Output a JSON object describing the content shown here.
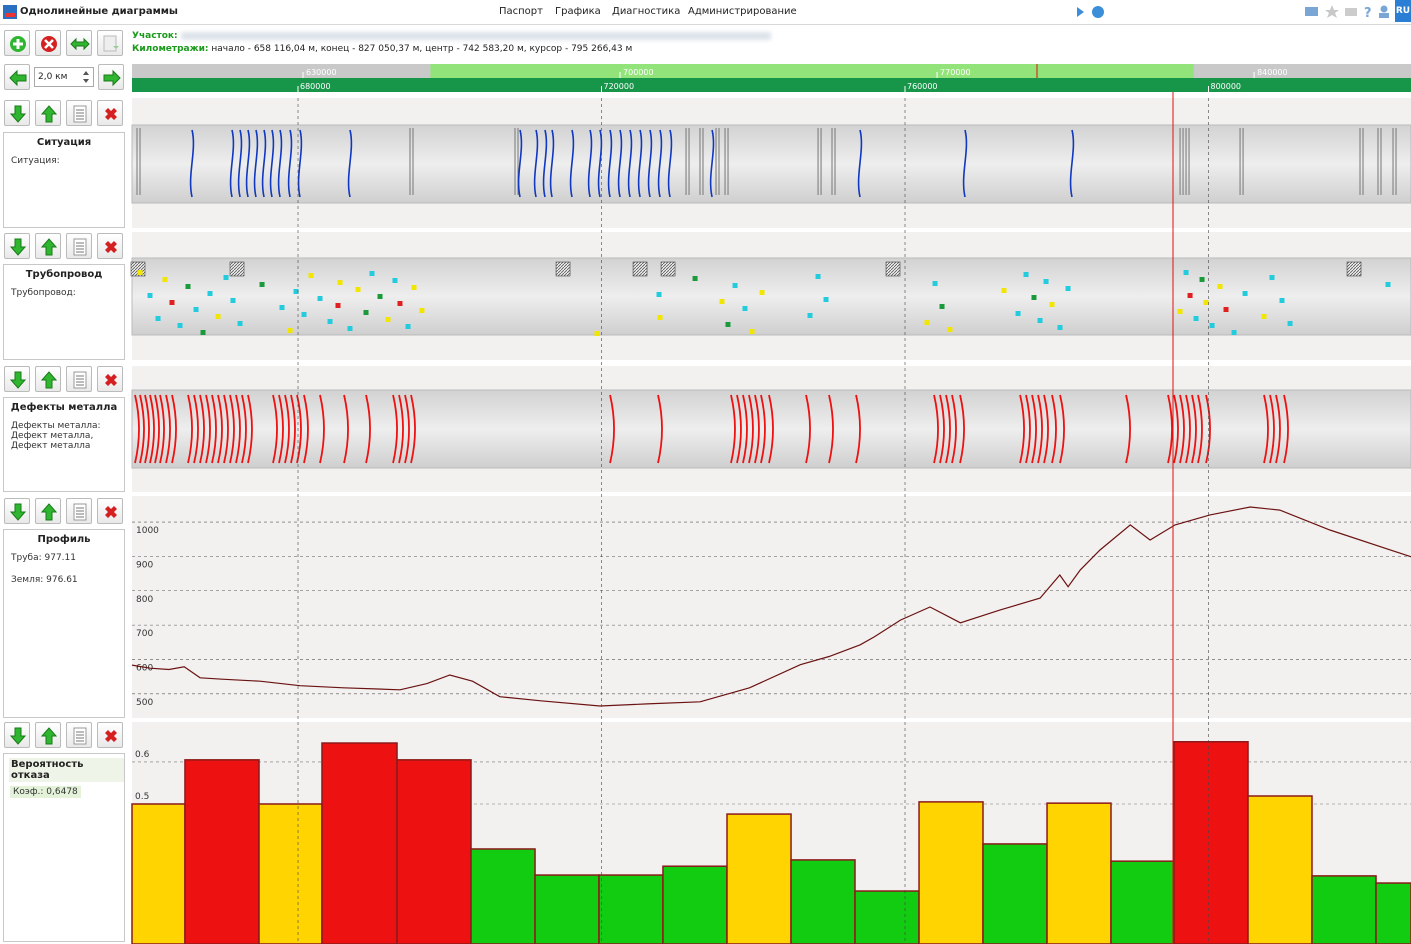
{
  "header": {
    "title": "Однолинейные диаграммы",
    "menu": [
      "Паспорт",
      "Графика",
      "Диагностика",
      "Администрирование"
    ],
    "language": "RU"
  },
  "info": {
    "section_label": "Участок:",
    "km_label": "Километражи:",
    "km_text": "начало - 658 116,04 м, конец - 827 050,37 м, центр - 742 583,20 м, курсор - 795 266,43 м"
  },
  "zoom": "2,0 км",
  "ruler": {
    "top": {
      "xlim": [
        592240,
        874650
      ],
      "xticks": [
        630000,
        700000,
        770000,
        840000
      ]
    },
    "bottom": {
      "xlim": [
        658120,
        826690
      ],
      "xticks": [
        680000,
        720000,
        760000,
        800000
      ]
    }
  },
  "panels": [
    {
      "title": "Ситуация",
      "lines": [
        "Ситуация:"
      ],
      "crossings": [
        666030,
        671300,
        672360,
        673410,
        674460,
        675520,
        676570,
        677630,
        678950,
        680260,
        686850,
        709260,
        711370,
        712550,
        713480,
        716110,
        718490,
        719800,
        721120,
        722440,
        723760,
        725080,
        726390,
        727710,
        729030,
        734570,
        754070,
        767910,
        782010
      ],
      "structures": [
        658780,
        694760,
        708600,
        731140,
        732980,
        735090,
        736280,
        748540,
        750380,
        796250,
        797040,
        804160,
        819970,
        822340,
        824320
      ]
    },
    {
      "title": "Трубопровод",
      "lines": [
        "Трубопровод:"
      ],
      "fittings": [
        658910,
        671960,
        714930,
        725080,
        728770,
        758420,
        819180
      ],
      "points": [
        {
          "x": 659180,
          "color": "#f2e600"
        },
        {
          "x": 660490,
          "color": "#22ccdd"
        },
        {
          "x": 661550,
          "color": "#22ccdd"
        },
        {
          "x": 662470,
          "color": "#f2e600"
        },
        {
          "x": 663390,
          "color": "#e02020"
        },
        {
          "x": 664450,
          "color": "#22ccdd"
        },
        {
          "x": 665500,
          "color": "#1a9a3a"
        },
        {
          "x": 666560,
          "color": "#22ccdd"
        },
        {
          "x": 667480,
          "color": "#1a9a3a"
        },
        {
          "x": 668400,
          "color": "#22ccdd"
        },
        {
          "x": 669460,
          "color": "#f2e600"
        },
        {
          "x": 670510,
          "color": "#22ccdd"
        },
        {
          "x": 671430,
          "color": "#22ccdd"
        },
        {
          "x": 672360,
          "color": "#22ccdd"
        },
        {
          "x": 675260,
          "color": "#1a9a3a"
        },
        {
          "x": 677890,
          "color": "#22ccdd"
        },
        {
          "x": 678950,
          "color": "#f2e600"
        },
        {
          "x": 679740,
          "color": "#22ccdd"
        },
        {
          "x": 680790,
          "color": "#22ccdd"
        },
        {
          "x": 681710,
          "color": "#f2e600"
        },
        {
          "x": 682900,
          "color": "#22ccdd"
        },
        {
          "x": 684220,
          "color": "#22ccdd"
        },
        {
          "x": 685540,
          "color": "#f2e600"
        },
        {
          "x": 685270,
          "color": "#e02020"
        },
        {
          "x": 686850,
          "color": "#22ccdd"
        },
        {
          "x": 687910,
          "color": "#f2e600"
        },
        {
          "x": 688960,
          "color": "#1a9a3a"
        },
        {
          "x": 689750,
          "color": "#22ccdd"
        },
        {
          "x": 690810,
          "color": "#1a9a3a"
        },
        {
          "x": 691860,
          "color": "#f2e600"
        },
        {
          "x": 692780,
          "color": "#22ccdd"
        },
        {
          "x": 693440,
          "color": "#e02020"
        },
        {
          "x": 694500,
          "color": "#22ccdd"
        },
        {
          "x": 695290,
          "color": "#f2e600"
        },
        {
          "x": 696340,
          "color": "#f2e600"
        },
        {
          "x": 719410,
          "color": "#f2e600"
        },
        {
          "x": 727580,
          "color": "#22ccdd"
        },
        {
          "x": 727710,
          "color": "#f2e600"
        },
        {
          "x": 732330,
          "color": "#1a9a3a"
        },
        {
          "x": 735880,
          "color": "#f2e600"
        },
        {
          "x": 736670,
          "color": "#1a9a3a"
        },
        {
          "x": 737600,
          "color": "#22ccdd"
        },
        {
          "x": 738910,
          "color": "#22ccdd"
        },
        {
          "x": 739840,
          "color": "#f2e600"
        },
        {
          "x": 741160,
          "color": "#f2e600"
        },
        {
          "x": 747480,
          "color": "#22ccdd"
        },
        {
          "x": 748540,
          "color": "#22ccdd"
        },
        {
          "x": 749590,
          "color": "#22ccdd"
        },
        {
          "x": 762900,
          "color": "#f2e600"
        },
        {
          "x": 763960,
          "color": "#22ccdd"
        },
        {
          "x": 764880,
          "color": "#1a9a3a"
        },
        {
          "x": 765930,
          "color": "#f2e600"
        },
        {
          "x": 773050,
          "color": "#f2e600"
        },
        {
          "x": 774900,
          "color": "#22ccdd"
        },
        {
          "x": 775950,
          "color": "#22ccdd"
        },
        {
          "x": 777000,
          "color": "#1a9a3a"
        },
        {
          "x": 777800,
          "color": "#22ccdd"
        },
        {
          "x": 778590,
          "color": "#22ccdd"
        },
        {
          "x": 779380,
          "color": "#f2e600"
        },
        {
          "x": 780430,
          "color": "#22ccdd"
        },
        {
          "x": 781490,
          "color": "#22ccdd"
        },
        {
          "x": 796250,
          "color": "#f2e600"
        },
        {
          "x": 797040,
          "color": "#22ccdd"
        },
        {
          "x": 797570,
          "color": "#e02020"
        },
        {
          "x": 798360,
          "color": "#22ccdd"
        },
        {
          "x": 799150,
          "color": "#1a9a3a"
        },
        {
          "x": 799670,
          "color": "#f2e600"
        },
        {
          "x": 800470,
          "color": "#22ccdd"
        },
        {
          "x": 801520,
          "color": "#f2e600"
        },
        {
          "x": 802310,
          "color": "#e02020"
        },
        {
          "x": 803370,
          "color": "#22ccdd"
        },
        {
          "x": 804820,
          "color": "#22ccdd"
        },
        {
          "x": 807320,
          "color": "#f2e600"
        },
        {
          "x": 808370,
          "color": "#22ccdd"
        },
        {
          "x": 809690,
          "color": "#22ccdd"
        },
        {
          "x": 810750,
          "color": "#22ccdd"
        },
        {
          "x": 823660,
          "color": "#22ccdd"
        }
      ]
    },
    {
      "title": "Дефекты металла",
      "lines": [
        "Дефекты металла:",
        "Дефект металла,",
        "Дефект металла"
      ],
      "defects": [
        658780,
        659440,
        660100,
        660760,
        661420,
        662080,
        662870,
        663660,
        665770,
        666560,
        667350,
        668140,
        668930,
        669720,
        670510,
        671300,
        672090,
        672880,
        673670,
        676970,
        677760,
        678550,
        679340,
        680130,
        681050,
        683160,
        686330,
        689230,
        692790,
        693580,
        694370,
        695160,
        721390,
        727710,
        737330,
        738120,
        738910,
        739700,
        740490,
        741280,
        742340,
        747220,
        750250,
        753810,
        764090,
        764880,
        765670,
        766460,
        767520,
        775430,
        776210,
        777010,
        777800,
        778590,
        779640,
        780700,
        789400,
        794930,
        795720,
        796510,
        797300,
        798090,
        798880,
        799940,
        807580,
        808370,
        809160,
        810220
      ]
    },
    {
      "title": "Профиль",
      "lines": [
        "Труба: 977.11",
        "Земля: 976.61"
      ]
    },
    {
      "title": "Вероятность отказа",
      "lines": [
        "Коэф.: 0,6478"
      ]
    }
  ],
  "chart_data": [
    {
      "type": "line",
      "color": "#6b1212",
      "grid": true,
      "x": [
        658122,
        660500,
        663000,
        665000,
        667100,
        670000,
        675000,
        680260,
        686000,
        693440,
        697000,
        700000,
        703000,
        706600,
        712000,
        719800,
        726000,
        733000,
        739500,
        746200,
        750000,
        754100,
        756000,
        759400,
        763300,
        767300,
        772500,
        777800,
        780400,
        781500,
        783100,
        785700,
        789700,
        792300,
        795600,
        800200,
        805500,
        809400,
        816000,
        826700
      ],
      "values": [
        607,
        598,
        594,
        602,
        570,
        566,
        560,
        547,
        541,
        535,
        553,
        578,
        560,
        515,
        503,
        488,
        494,
        500,
        541,
        608,
        632,
        666,
        690,
        738,
        776,
        730,
        767,
        802,
        869,
        835,
        884,
        942,
        1015,
        971,
        1015,
        1044,
        1067,
        1058,
        1000,
        922
      ],
      "xlim": [
        658120,
        826690
      ],
      "ylim": [
        453,
        1099
      ],
      "yticks": [
        500,
        600,
        700,
        800,
        900,
        1000
      ]
    },
    {
      "type": "histogram",
      "stroke": "#8b1a1a",
      "bins": [
        658120,
        665100,
        674860,
        683160,
        693050,
        702800,
        711240,
        719670,
        728100,
        736540,
        744980,
        753410,
        761850,
        770280,
        778720,
        787150,
        795450,
        805210,
        813640,
        822080,
        826690
      ],
      "values": [
        0.481,
        0.586,
        0.481,
        0.626,
        0.586,
        0.374,
        0.312,
        0.312,
        0.333,
        0.457,
        0.348,
        0.274,
        0.486,
        0.386,
        0.483,
        0.345,
        0.629,
        0.5,
        0.31,
        0.293
      ],
      "colors": [
        "#ffd400",
        "#ee1111",
        "#ffd400",
        "#ee1111",
        "#ee1111",
        "#11cc11",
        "#11cc11",
        "#11cc11",
        "#11cc11",
        "#ffd400",
        "#11cc11",
        "#11cc11",
        "#ffd400",
        "#11cc11",
        "#ffd400",
        "#11cc11",
        "#ee1111",
        "#ffd400",
        "#11cc11",
        "#11cc11"
      ],
      "xlim": [
        658120,
        826690
      ],
      "ylim": [
        0.148,
        0.676
      ],
      "yticks": [
        0.5,
        0.6
      ]
    }
  ]
}
